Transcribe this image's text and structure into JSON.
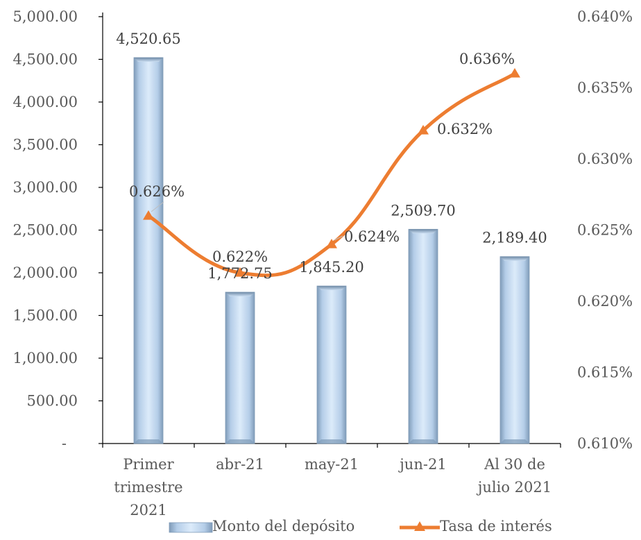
{
  "chart_data": {
    "type": "bar",
    "title": "",
    "categories": [
      [
        "Primer",
        "trimestre",
        "2021"
      ],
      [
        "abr-21"
      ],
      [
        "may-21"
      ],
      [
        "jun-21"
      ],
      [
        "Al 30 de",
        "julio 2021"
      ]
    ],
    "series": [
      {
        "name": "Monto del depósito",
        "type": "bar",
        "axis": "left",
        "values": [
          4520.65,
          1772.75,
          1845.2,
          2509.7,
          2189.4
        ],
        "labels": [
          "4,520.65",
          "1,772.75",
          "1,845.20",
          "2,509.70",
          "2,189.40"
        ],
        "color": "#b8d3ee"
      },
      {
        "name": "Tasa de interés",
        "type": "line",
        "axis": "right",
        "values": [
          0.626,
          0.622,
          0.624,
          0.632,
          0.636
        ],
        "labels": [
          "0.626%",
          "0.622%",
          "0.624%",
          "0.632%",
          "0.636%"
        ],
        "color": "#ed7d31",
        "marker": "triangle",
        "smooth": true
      }
    ],
    "y_left": {
      "min": 0,
      "max": 5000,
      "ticks": [
        "-",
        "500.00",
        "1,000.00",
        "1,500.00",
        "2,000.00",
        "2,500.00",
        "3,000.00",
        "3,500.00",
        "4,000.00",
        "4,500.00",
        "5,000.00"
      ]
    },
    "y_right": {
      "min": 0.61,
      "max": 0.64,
      "ticks": [
        "0.610%",
        "0.615%",
        "0.620%",
        "0.625%",
        "0.630%",
        "0.635%",
        "0.640%"
      ]
    },
    "grid": false,
    "legend_position": "bottom"
  }
}
